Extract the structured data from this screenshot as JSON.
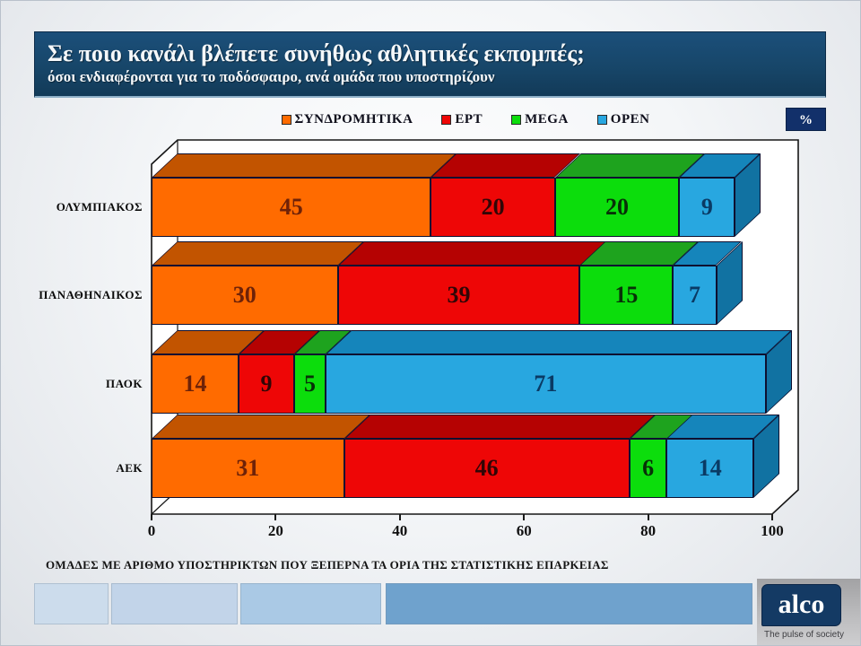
{
  "header": {
    "title": "Σε ποιο κανάλι βλέπετε συνήθως αθλητικές εκπομπές;",
    "subtitle": "όσοι ενδιαφέρονται για το ποδόσφαιρο, ανά ομάδα που υποστηρίζουν"
  },
  "unit_badge": "%",
  "chart_data": {
    "type": "bar",
    "stacked": true,
    "orientation": "horizontal",
    "style": "3d",
    "title": "Σε ποιο κανάλι βλέπετε συνήθως αθλητικές εκπομπές;",
    "categories": [
      "ΟΛΥΜΠΙΑΚΟΣ",
      "ΠΑΝΑΘΗΝΑΙΚΟΣ",
      "ΠΑΟΚ",
      "ΑΕΚ"
    ],
    "series": [
      {
        "name": "ΣΥΝΔΡΟΜΗΤΙΚΑ",
        "values": [
          45,
          30,
          14,
          31
        ],
        "color": "#ff6b00",
        "color_top": "#c25400",
        "color_side": "#a84800",
        "label_color": "#6e2208"
      },
      {
        "name": "ΕΡΤ",
        "values": [
          20,
          39,
          9,
          46
        ],
        "color": "#ee0606",
        "color_top": "#b50202",
        "color_side": "#9e0202",
        "label_color": "#310606"
      },
      {
        "name": "MEGA",
        "values": [
          20,
          15,
          5,
          6
        ],
        "color": "#0cdd0c",
        "color_top": "#1ea31e",
        "color_side": "#168a16",
        "label_color": "#083008"
      },
      {
        "name": "OPEN",
        "values": [
          9,
          7,
          71,
          14
        ],
        "color": "#28a7e0",
        "color_top": "#1585bb",
        "color_side": "#1172a2",
        "label_color": "#0a3a64"
      }
    ],
    "xlabel": "",
    "ylabel": "",
    "xlim": [
      0,
      100
    ],
    "x_ticks": [
      0,
      20,
      40,
      60,
      80,
      100
    ],
    "unit": "%",
    "legend_position": "top",
    "grid": false
  },
  "footnote": "ΟΜΑΔΕΣ ΜΕ ΑΡΙΘΜΟ ΥΠΟΣΤΗΡΙΚΤΩΝ ΠΟΥ ΞΕΠΕΡΝΑ ΤΑ ΟΡΙΑ ΤΗΣ ΣΤΑΤΙΣΤΙΚΗΣ ΕΠΑΡΚΕΙΑΣ",
  "decor_strip_colors": [
    "#ccdcec",
    "#c2d4e9",
    "#aac9e5",
    "#6fa2cd"
  ],
  "branding": {
    "logo_text": "alco",
    "tagline": "The pulse of society"
  }
}
